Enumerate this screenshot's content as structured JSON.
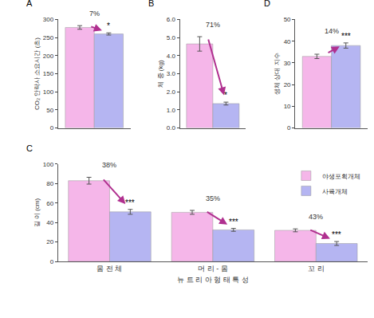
{
  "chart_data": [
    {
      "title": "A",
      "type": "bar",
      "categories": [
        null
      ],
      "series": [
        {
          "color": "#f5b6e9",
          "values": [
            278
          ],
          "errors": [
            5
          ]
        },
        {
          "color": "#b5b5f2",
          "values": [
            260
          ],
          "errors": [
            3
          ]
        }
      ],
      "change_labels": [
        "7%"
      ],
      "significance": [
        "*"
      ],
      "ylabel": "CO₂ 안락사 소요시간 (초)",
      "ylim": [
        0,
        300
      ],
      "yticks": [
        0,
        50,
        100,
        150,
        200,
        250,
        300
      ],
      "grid": false,
      "tick_labels": "y"
    },
    {
      "title": "B",
      "type": "bar",
      "categories": [
        null
      ],
      "series": [
        {
          "color": "#f5b6e9",
          "values": [
            4.65
          ],
          "errors": [
            0.4
          ]
        },
        {
          "color": "#b5b5f2",
          "values": [
            1.35
          ],
          "errors": [
            0.08
          ]
        }
      ],
      "change_labels": [
        "71%"
      ],
      "significance": [
        "*"
      ],
      "ylabel": "체 중 (kg)",
      "ylim": [
        0,
        6
      ],
      "yticks": [
        {
          "value": 0,
          "label": "0.0"
        },
        {
          "value": 1,
          "label": "1.0"
        },
        {
          "value": 2,
          "label": "2.0"
        },
        {
          "value": 3,
          "label": "3.0"
        },
        {
          "value": 4,
          "label": "4.0"
        },
        {
          "value": 5,
          "label": "5.0"
        },
        {
          "value": 6,
          "label": "6.0"
        }
      ],
      "grid": false,
      "tick_labels": "y"
    },
    {
      "title": "D",
      "type": "bar",
      "categories": [
        null
      ],
      "series": [
        {
          "color": "#f5b6e9",
          "values": [
            33
          ],
          "errors": [
            1
          ]
        },
        {
          "color": "#b5b5f2",
          "values": [
            38
          ],
          "errors": [
            1.2
          ]
        }
      ],
      "change_labels": [
        "14%"
      ],
      "significance": [
        "***"
      ],
      "ylabel": "생체 상대 지수",
      "ylim": [
        0,
        50
      ],
      "yticks": [
        0,
        10,
        20,
        30,
        40,
        50
      ],
      "grid": false,
      "tick_labels": "y"
    },
    {
      "title": "C",
      "type": "bar",
      "categories": [
        "몸 전 체",
        "머 리 - 몸",
        "꼬 리"
      ],
      "series": [
        {
          "name": "야생포획개체",
          "color": "#f5b6e9",
          "values": [
            83,
            50.5,
            32
          ],
          "errors": [
            3.5,
            2,
            1.5
          ]
        },
        {
          "name": "사육개체",
          "color": "#b5b5f2",
          "values": [
            51,
            32.5,
            18.5
          ],
          "errors": [
            2.5,
            1.5,
            2
          ]
        }
      ],
      "change_labels": [
        "38%",
        "35%",
        "43%"
      ],
      "significance": [
        "***",
        "***",
        "***"
      ],
      "xlabel": "뉴 트 리 아 형 태 특 성",
      "ylabel": "길 이 (cm)",
      "ylim": [
        0,
        100
      ],
      "yticks": [
        0,
        20,
        40,
        60,
        80,
        100
      ],
      "grid": false,
      "legend": "upper right"
    }
  ]
}
